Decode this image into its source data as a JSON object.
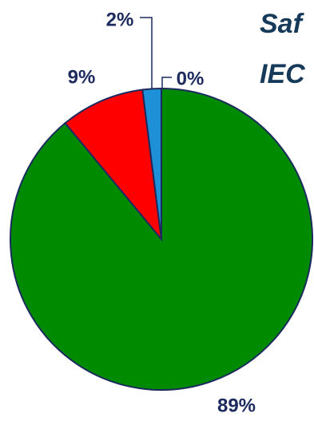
{
  "chart_data": {
    "type": "pie",
    "categories": [
      null,
      null,
      null,
      null
    ],
    "values": [
      0,
      89,
      9,
      2
    ],
    "value_labels": [
      "0%",
      "89%",
      "9%",
      "2%"
    ],
    "colors": [
      "#1e90d8",
      "#008a00",
      "#ff0000",
      "#1e90d8"
    ]
  },
  "heading": {
    "line1": "Saf",
    "line2": "IEC"
  }
}
